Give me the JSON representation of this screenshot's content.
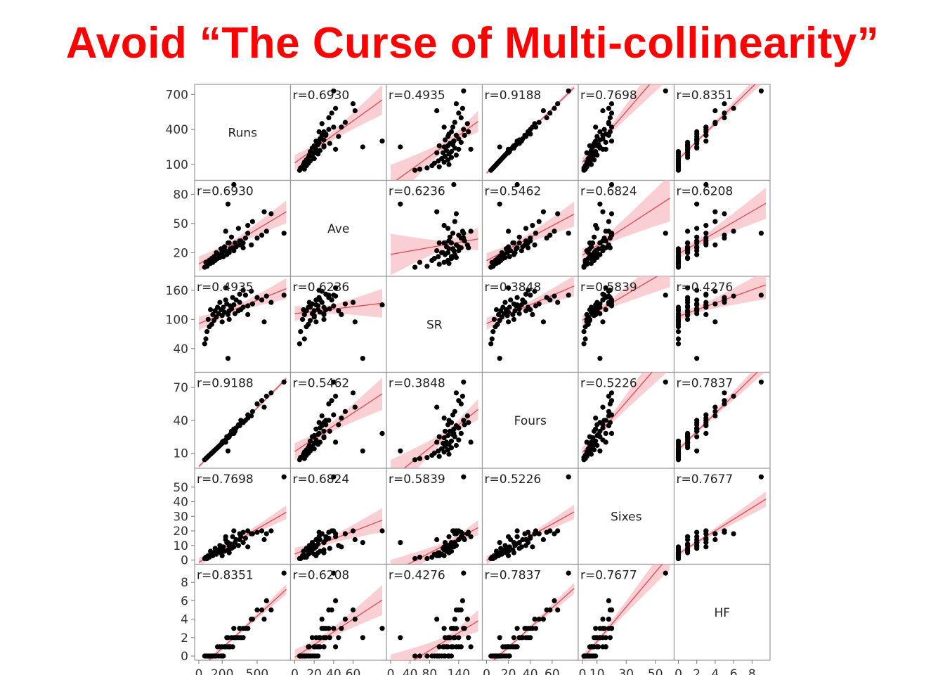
{
  "slide": {
    "title": "Avoid “The Curse of Multi-collinearity”"
  },
  "chart_data": {
    "type": "scatter",
    "subtype": "scatterplot-matrix",
    "fit": "linear regression line with red confidence band",
    "point_color": "#000000",
    "fit_color": "#e0505a",
    "band_color": "#f7c3c8",
    "variables": [
      "Runs",
      "Ave",
      "SR",
      "Fours",
      "Sixes",
      "HF"
    ],
    "ranges": [
      [
        0,
        750
      ],
      [
        0,
        90
      ],
      [
        0,
        180
      ],
      [
        0,
        80
      ],
      [
        0,
        60
      ],
      [
        0,
        9.5
      ]
    ],
    "y_ticks": [
      [
        "700",
        "400",
        "100"
      ],
      [
        "80",
        "50",
        "20"
      ],
      [
        "160",
        "100",
        "40"
      ],
      [
        "70",
        "40",
        "10"
      ],
      [
        "50",
        "40",
        "30",
        "20",
        "10",
        "0"
      ],
      [
        "8",
        "6",
        "4",
        "2",
        "0"
      ]
    ],
    "y_tick_values": [
      [
        700,
        400,
        100
      ],
      [
        80,
        50,
        20
      ],
      [
        160,
        100,
        40
      ],
      [
        70,
        40,
        10
      ],
      [
        50,
        40,
        30,
        20,
        10,
        0
      ],
      [
        8,
        6,
        4,
        2,
        0
      ]
    ],
    "x_ticks": [
      [
        "0",
        "200",
        "500"
      ],
      [
        "0",
        "20",
        "40",
        "60"
      ],
      [
        "0",
        "40",
        "80",
        "140"
      ],
      [
        "0",
        "20",
        "40",
        "60"
      ],
      [
        "0",
        "10",
        "30",
        "50"
      ],
      [
        "0",
        "2",
        "4",
        "6",
        "8"
      ]
    ],
    "x_tick_values": [
      [
        0,
        200,
        500
      ],
      [
        0,
        20,
        40,
        60
      ],
      [
        0,
        40,
        80,
        140
      ],
      [
        0,
        20,
        40,
        60
      ],
      [
        0,
        10,
        30,
        50
      ],
      [
        0,
        2,
        4,
        6,
        8
      ]
    ],
    "correlations": [
      [
        "",
        "r=0.6930",
        "r=0.4935",
        "r=0.9188",
        "r=0.7698",
        "r=0.8351"
      ],
      [
        "r=0.6930",
        "",
        "r=0.6236",
        "r=0.5462",
        "r=0.6824",
        "r=0.6208"
      ],
      [
        "r=0.4935",
        "r=0.6236",
        "",
        "r=0.3848",
        "r=0.5839",
        "r=0.4276"
      ],
      [
        "r=0.9188",
        "r=0.5462",
        "r=0.3848",
        "",
        "r=0.5226",
        "r=0.7837"
      ],
      [
        "r=0.7698",
        "r=0.6824",
        "r=0.5839",
        "r=0.5226",
        "",
        "r=0.7677"
      ],
      [
        "r=0.8351",
        "r=0.6208",
        "r=0.4276",
        "r=0.7837",
        "r=0.7677",
        ""
      ]
    ],
    "observations": [
      [
        730,
        40,
        150,
        75,
        57,
        9
      ],
      [
        620,
        60,
        135,
        65,
        20,
        5
      ],
      [
        580,
        42,
        148,
        62,
        18,
        6
      ],
      [
        540,
        38,
        140,
        58,
        20,
        5
      ],
      [
        500,
        35,
        145,
        55,
        19,
        5
      ],
      [
        460,
        52,
        132,
        48,
        18,
        4
      ],
      [
        420,
        40,
        128,
        45,
        20,
        3
      ],
      [
        400,
        35,
        150,
        40,
        15,
        3
      ],
      [
        380,
        30,
        125,
        38,
        12,
        3
      ],
      [
        360,
        32,
        120,
        40,
        16,
        2
      ],
      [
        350,
        28,
        135,
        35,
        18,
        3
      ],
      [
        340,
        45,
        118,
        36,
        10,
        2
      ],
      [
        320,
        26,
        140,
        33,
        14,
        2
      ],
      [
        310,
        30,
        112,
        30,
        12,
        2
      ],
      [
        300,
        22,
        130,
        32,
        9,
        2
      ],
      [
        290,
        25,
        145,
        28,
        16,
        1
      ],
      [
        280,
        36,
        122,
        30,
        8,
        2
      ],
      [
        270,
        24,
        128,
        27,
        11,
        1
      ],
      [
        260,
        20,
        118,
        26,
        10,
        1
      ],
      [
        250,
        30,
        110,
        24,
        7,
        1
      ],
      [
        240,
        18,
        132,
        25,
        12,
        2
      ],
      [
        230,
        22,
        140,
        22,
        14,
        1
      ],
      [
        220,
        26,
        115,
        20,
        6,
        1
      ],
      [
        210,
        16,
        125,
        21,
        9,
        0
      ],
      [
        200,
        20,
        108,
        19,
        8,
        1
      ],
      [
        190,
        24,
        120,
        18,
        5,
        0
      ],
      [
        180,
        15,
        135,
        17,
        10,
        1
      ],
      [
        170,
        18,
        112,
        16,
        7,
        0
      ],
      [
        160,
        14,
        125,
        15,
        6,
        1
      ],
      [
        150,
        20,
        105,
        14,
        4,
        0
      ],
      [
        140,
        12,
        118,
        13,
        8,
        0
      ],
      [
        130,
        16,
        98,
        12,
        5,
        0
      ],
      [
        120,
        10,
        110,
        11,
        3,
        0
      ],
      [
        110,
        14,
        90,
        10,
        4,
        0
      ],
      [
        100,
        9,
        120,
        9,
        6,
        0
      ],
      [
        90,
        12,
        85,
        8,
        2,
        0
      ],
      [
        80,
        8,
        100,
        7,
        3,
        0
      ],
      [
        70,
        6,
        75,
        6,
        1,
        0
      ],
      [
        60,
        10,
        60,
        5,
        2,
        0
      ],
      [
        50,
        5,
        50,
        4,
        1,
        0
      ],
      [
        300,
        90,
        130,
        28,
        20,
        3
      ],
      [
        250,
        70,
        20,
        12,
        12,
        2
      ],
      [
        230,
        42,
        165,
        20,
        16,
        1
      ],
      [
        450,
        28,
        158,
        44,
        18,
        4
      ],
      [
        350,
        32,
        152,
        36,
        14,
        3
      ],
      [
        420,
        48,
        110,
        42,
        9,
        3
      ],
      [
        560,
        62,
        95,
        52,
        14,
        4
      ],
      [
        260,
        30,
        100,
        25,
        5,
        1
      ],
      [
        200,
        22,
        95,
        20,
        3,
        0
      ],
      [
        380,
        25,
        160,
        38,
        19,
        2
      ]
    ]
  }
}
